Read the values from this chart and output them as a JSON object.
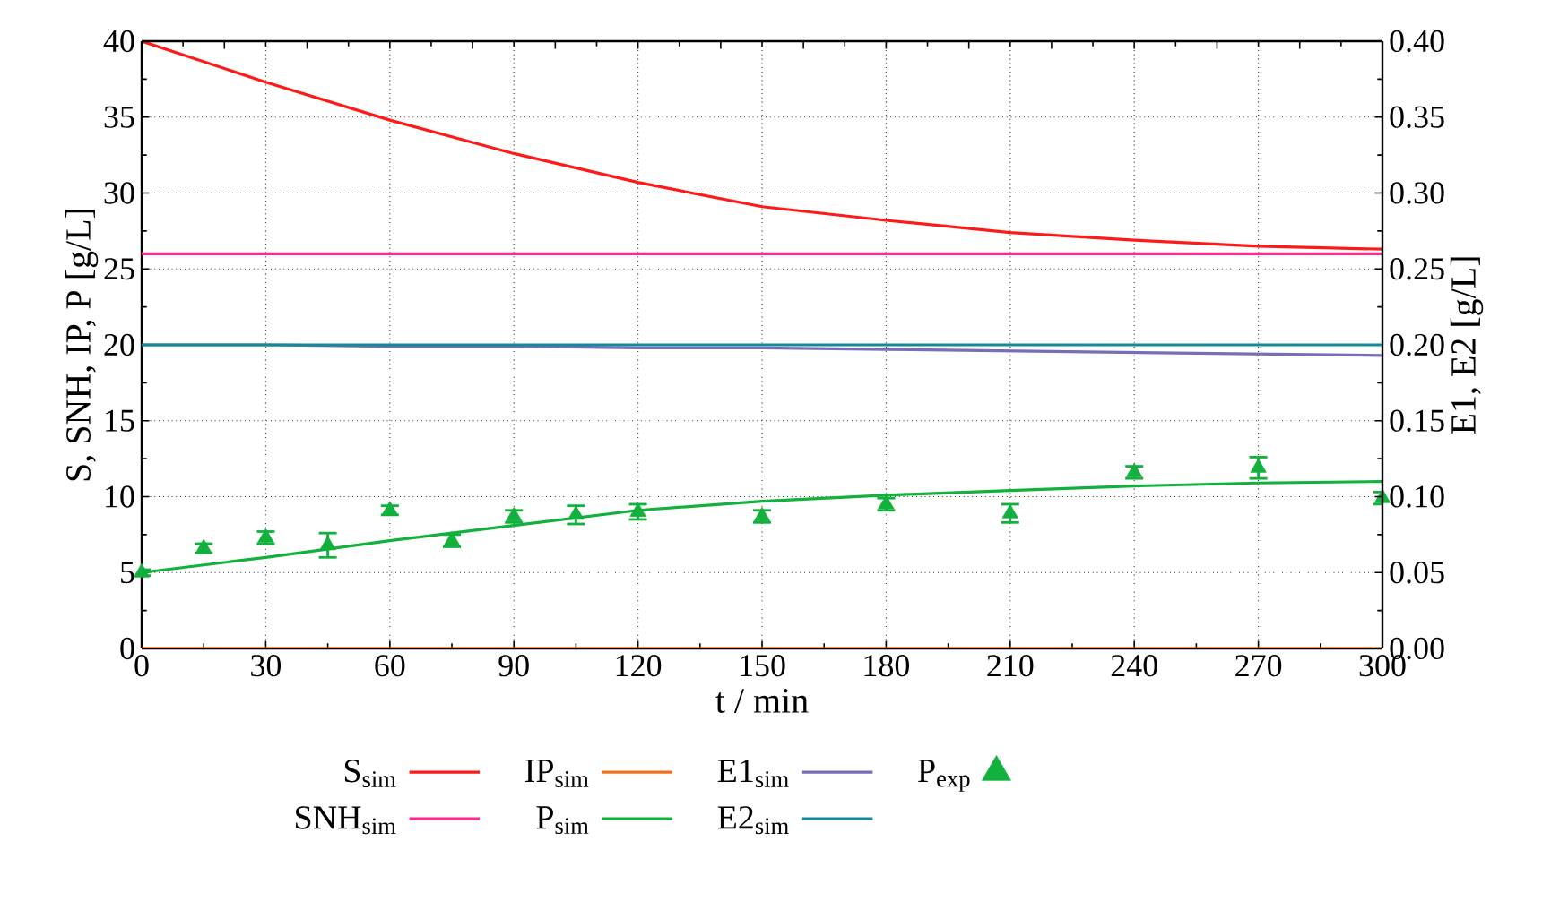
{
  "chart_data": {
    "type": "line",
    "xlabel": "t / min",
    "ylabel": "S, SNH, IP, P [g/L]",
    "y2label": "E1, E2 [g/L]",
    "x": [
      0,
      30,
      60,
      90,
      120,
      150,
      180,
      210,
      240,
      270,
      300
    ],
    "series": [
      {
        "name": "S$_{sim}$",
        "color": "#ff1a1a",
        "values": [
          40,
          37.3,
          34.8,
          32.6,
          30.7,
          29.1,
          28.2,
          27.4,
          26.9,
          26.5,
          26.3
        ]
      },
      {
        "name": "IP$_{sim}$",
        "color": "#f07020",
        "values": [
          0,
          0,
          0,
          0,
          0,
          0,
          0,
          0,
          0,
          0,
          0
        ]
      },
      {
        "name": "E1$_{sim}$",
        "color": "#7b6bb8",
        "axis": "y2",
        "values": [
          0.2,
          0.2,
          0.199,
          0.199,
          0.198,
          0.198,
          0.197,
          0.196,
          0.195,
          0.194,
          0.193
        ]
      },
      {
        "name": "P$_{exp}$",
        "type": "scatter",
        "marker": "triangle",
        "color": "#12b03c",
        "x": [
          0,
          15,
          30,
          45,
          60,
          75,
          90,
          105,
          120,
          150,
          180,
          210,
          240,
          270,
          300
        ],
        "values": [
          5.0,
          6.6,
          7.3,
          6.8,
          9.1,
          7.1,
          8.7,
          8.8,
          9.0,
          8.7,
          9.5,
          8.9,
          11.6,
          11.9,
          9.9
        ],
        "errors": [
          0.2,
          0.3,
          0.4,
          0.8,
          0.3,
          0.4,
          0.4,
          0.6,
          0.5,
          0.4,
          0.4,
          0.6,
          0.4,
          0.7,
          0.4
        ]
      },
      {
        "name": "SNH$_{sim}$",
        "color": "#ff2b8a",
        "values": [
          26,
          26,
          26,
          26,
          26,
          26,
          26,
          26,
          26,
          26,
          26
        ]
      },
      {
        "name": "P$_{sim}$",
        "color": "#12b03c",
        "values": [
          5.0,
          6.0,
          7.1,
          8.1,
          9.1,
          9.7,
          10.1,
          10.4,
          10.7,
          10.9,
          11.0
        ]
      },
      {
        "name": "E2$_{sim}$",
        "color": "#138a96",
        "axis": "y2",
        "values": [
          0.2,
          0.2,
          0.2,
          0.2,
          0.2,
          0.2,
          0.2,
          0.2,
          0.2,
          0.2,
          0.2
        ]
      }
    ],
    "xlim": [
      0,
      300
    ],
    "xticks": [
      0,
      30,
      60,
      90,
      120,
      150,
      180,
      210,
      240,
      270,
      300
    ],
    "ylim": [
      0,
      40
    ],
    "yticks": [
      0,
      5,
      10,
      15,
      20,
      25,
      30,
      35,
      40
    ],
    "y2lim": [
      0,
      0.4
    ],
    "y2ticks": [
      {
        "value": 0,
        "label": "0.00"
      },
      {
        "value": 0.05,
        "label": "0.05"
      },
      {
        "value": 0.1,
        "label": "0.10"
      },
      {
        "value": 0.15,
        "label": "0.15"
      },
      {
        "value": 0.2,
        "label": "0.20"
      },
      {
        "value": 0.25,
        "label": "0.25"
      },
      {
        "value": 0.3,
        "label": "0.30"
      },
      {
        "value": 0.35,
        "label": "0.35"
      },
      {
        "value": 0.4,
        "label": "0.40"
      }
    ],
    "grid": true,
    "legend": "bottom",
    "marker": "none",
    "line_style": "solid"
  }
}
